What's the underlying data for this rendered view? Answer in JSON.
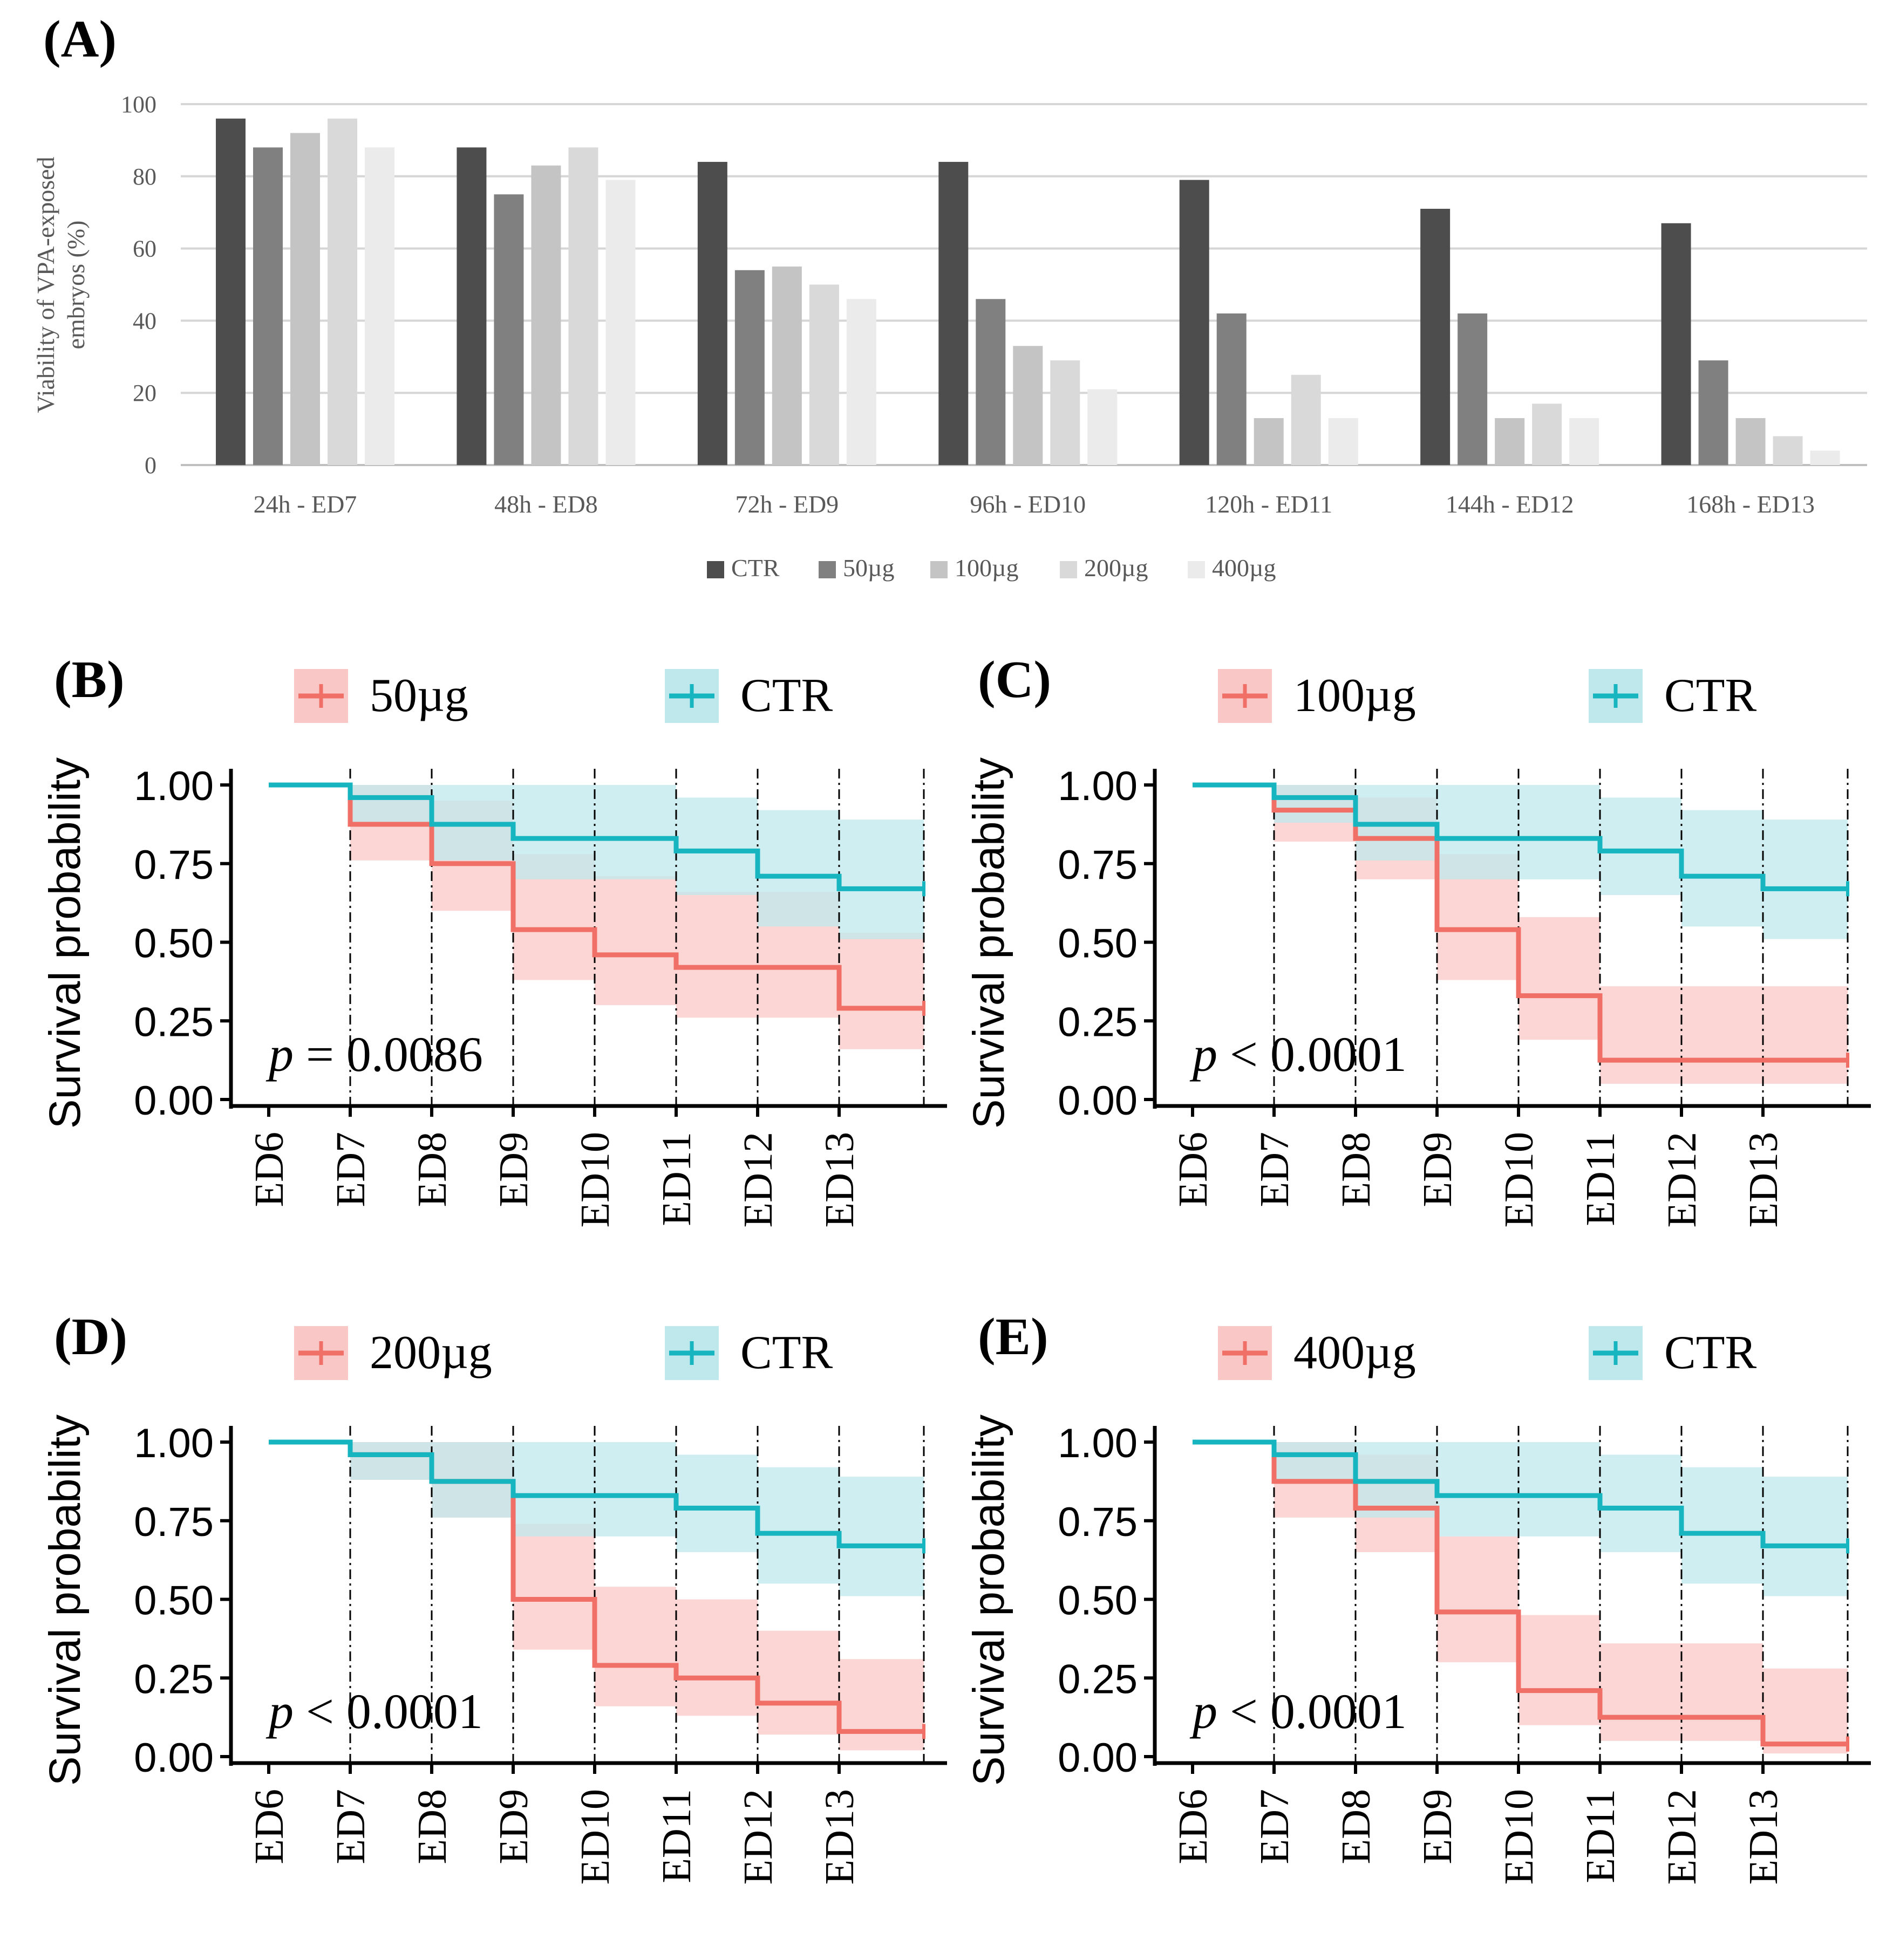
{
  "chart_data": [
    {
      "panel": "(A)",
      "type": "bar",
      "ylabel_lines": [
        "Viability of VPA-exposed",
        "embryos (%)"
      ],
      "ylim": [
        0,
        100
      ],
      "yticks": [
        "0",
        "20",
        "40",
        "60",
        "80",
        "100"
      ],
      "grid": true,
      "legend_position": "bottom",
      "categories": [
        "24h - ED7",
        "48h - ED8",
        "72h - ED9",
        "96h - ED10",
        "120h - ED11",
        "144h - ED12",
        "168h - ED13"
      ],
      "series": [
        {
          "name": "CTR",
          "color": "#4d4d4d",
          "values": [
            96,
            88,
            84,
            84,
            79,
            71,
            67
          ]
        },
        {
          "name": "50µg",
          "color": "#808080",
          "values": [
            88,
            75,
            54,
            46,
            42,
            42,
            29
          ]
        },
        {
          "name": "100µg",
          "color": "#c4c4c4",
          "values": [
            92,
            83,
            55,
            33,
            13,
            13,
            13
          ]
        },
        {
          "name": "200µg",
          "color": "#d9d9d9",
          "values": [
            96,
            88,
            50,
            29,
            25,
            17,
            8
          ]
        },
        {
          "name": "400µg",
          "color": "#ebebeb",
          "values": [
            88,
            79,
            46,
            21,
            13,
            13,
            4
          ]
        }
      ]
    },
    {
      "panel": "(B)",
      "type": "line",
      "subtype": "kaplan-meier",
      "ylabel": "Survival probability",
      "ylim": [
        0,
        1
      ],
      "yticks": [
        "0.00",
        "0.25",
        "0.50",
        "0.75",
        "1.00"
      ],
      "x": [
        "ED6",
        "ED7",
        "ED8",
        "ED9",
        "ED10",
        "ED11",
        "ED12",
        "ED13"
      ],
      "pvalue": {
        "p": "p",
        "rest": " = 0.0086"
      },
      "series": [
        {
          "name": "50µg",
          "color": "#f07068",
          "band": "#f9c8c6",
          "steps": [
            1.0,
            0.875,
            0.75,
            0.54,
            0.46,
            0.42,
            0.42,
            0.29
          ],
          "lower": [
            1.0,
            0.76,
            0.6,
            0.38,
            0.3,
            0.26,
            0.26,
            0.16
          ],
          "upper": [
            1.0,
            1.0,
            0.95,
            0.78,
            0.71,
            0.66,
            0.66,
            0.53
          ]
        },
        {
          "name": "CTR",
          "color": "#17b5c0",
          "band": "#bfe8ec",
          "steps": [
            1.0,
            0.96,
            0.875,
            0.83,
            0.83,
            0.79,
            0.71,
            0.67
          ],
          "lower": [
            1.0,
            0.88,
            0.76,
            0.7,
            0.7,
            0.65,
            0.55,
            0.51
          ],
          "upper": [
            1.0,
            1.0,
            1.0,
            1.0,
            1.0,
            0.96,
            0.92,
            0.89
          ]
        }
      ]
    },
    {
      "panel": "(C)",
      "type": "line",
      "subtype": "kaplan-meier",
      "ylabel": "Survival probability",
      "ylim": [
        0,
        1
      ],
      "yticks": [
        "0.00",
        "0.25",
        "0.50",
        "0.75",
        "1.00"
      ],
      "x": [
        "ED6",
        "ED7",
        "ED8",
        "ED9",
        "ED10",
        "ED11",
        "ED12",
        "ED13"
      ],
      "pvalue": {
        "p": "p",
        "rest": " < 0.0001"
      },
      "series": [
        {
          "name": "100µg",
          "color": "#f07068",
          "band": "#f9c8c6",
          "steps": [
            1.0,
            0.92,
            0.83,
            0.54,
            0.33,
            0.125,
            0.125,
            0.125
          ],
          "lower": [
            1.0,
            0.82,
            0.7,
            0.38,
            0.19,
            0.05,
            0.05,
            0.05
          ],
          "upper": [
            1.0,
            1.0,
            0.96,
            0.78,
            0.58,
            0.36,
            0.36,
            0.36
          ]
        },
        {
          "name": "CTR",
          "color": "#17b5c0",
          "band": "#bfe8ec",
          "steps": [
            1.0,
            0.96,
            0.875,
            0.83,
            0.83,
            0.79,
            0.71,
            0.67
          ],
          "lower": [
            1.0,
            0.88,
            0.76,
            0.7,
            0.7,
            0.65,
            0.55,
            0.51
          ],
          "upper": [
            1.0,
            1.0,
            1.0,
            1.0,
            1.0,
            0.96,
            0.92,
            0.89
          ]
        }
      ]
    },
    {
      "panel": "(D)",
      "type": "line",
      "subtype": "kaplan-meier",
      "ylabel": "Survival probability",
      "ylim": [
        0,
        1
      ],
      "yticks": [
        "0.00",
        "0.25",
        "0.50",
        "0.75",
        "1.00"
      ],
      "x": [
        "ED6",
        "ED7",
        "ED8",
        "ED9",
        "ED10",
        "ED11",
        "ED12",
        "ED13"
      ],
      "pvalue": {
        "p": "p",
        "rest": " < 0.0001"
      },
      "series": [
        {
          "name": "200µg",
          "color": "#f07068",
          "band": "#f9c8c6",
          "steps": [
            1.0,
            0.96,
            0.875,
            0.5,
            0.29,
            0.25,
            0.17,
            0.08
          ],
          "lower": [
            1.0,
            0.88,
            0.76,
            0.34,
            0.16,
            0.13,
            0.07,
            0.02
          ],
          "upper": [
            1.0,
            1.0,
            1.0,
            0.74,
            0.54,
            0.5,
            0.4,
            0.31
          ]
        },
        {
          "name": "CTR",
          "color": "#17b5c0",
          "band": "#bfe8ec",
          "steps": [
            1.0,
            0.96,
            0.875,
            0.83,
            0.83,
            0.79,
            0.71,
            0.67
          ],
          "lower": [
            1.0,
            0.88,
            0.76,
            0.7,
            0.7,
            0.65,
            0.55,
            0.51
          ],
          "upper": [
            1.0,
            1.0,
            1.0,
            1.0,
            1.0,
            0.96,
            0.92,
            0.89
          ]
        }
      ]
    },
    {
      "panel": "(E)",
      "type": "line",
      "subtype": "kaplan-meier",
      "ylabel": "Survival probability",
      "ylim": [
        0,
        1
      ],
      "yticks": [
        "0.00",
        "0.25",
        "0.50",
        "0.75",
        "1.00"
      ],
      "x": [
        "ED6",
        "ED7",
        "ED8",
        "ED9",
        "ED10",
        "ED11",
        "ED12",
        "ED13"
      ],
      "pvalue": {
        "p": "p",
        "rest": " < 0.0001"
      },
      "series": [
        {
          "name": "400µg",
          "color": "#f07068",
          "band": "#f9c8c6",
          "steps": [
            1.0,
            0.875,
            0.79,
            0.46,
            0.21,
            0.125,
            0.125,
            0.04
          ],
          "lower": [
            1.0,
            0.76,
            0.65,
            0.3,
            0.1,
            0.05,
            0.05,
            0.01
          ],
          "upper": [
            1.0,
            1.0,
            0.96,
            0.7,
            0.45,
            0.36,
            0.36,
            0.28
          ]
        },
        {
          "name": "CTR",
          "color": "#17b5c0",
          "band": "#bfe8ec",
          "steps": [
            1.0,
            0.96,
            0.875,
            0.83,
            0.83,
            0.79,
            0.71,
            0.67
          ],
          "lower": [
            1.0,
            0.88,
            0.76,
            0.7,
            0.7,
            0.65,
            0.55,
            0.51
          ],
          "upper": [
            1.0,
            1.0,
            1.0,
            1.0,
            1.0,
            0.96,
            0.92,
            0.89
          ]
        }
      ]
    }
  ]
}
